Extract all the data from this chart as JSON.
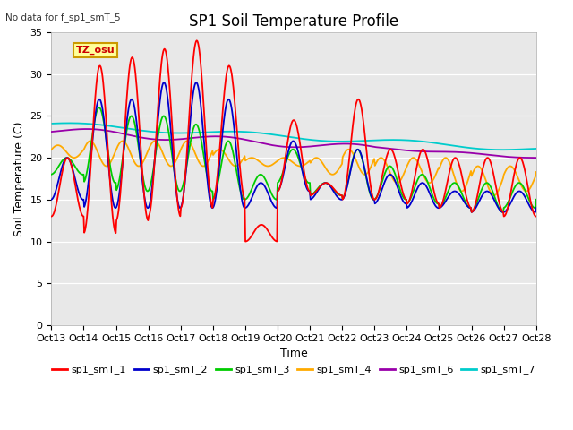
{
  "title": "SP1 Soil Temperature Profile",
  "subtitle": "No data for f_sp1_smT_5",
  "xlabel": "Time",
  "ylabel": "Soil Temperature (C)",
  "ylim": [
    0,
    35
  ],
  "yticks": [
    0,
    5,
    10,
    15,
    20,
    25,
    30,
    35
  ],
  "xtick_labels": [
    "Oct 13",
    "Oct 14",
    "Oct 15",
    "Oct 16",
    "Oct 17",
    "Oct 18",
    "Oct 19",
    "Oct 20",
    "Oct 21",
    "Oct 22",
    "Oct 23",
    "Oct 24",
    "Oct 25",
    "Oct 26",
    "Oct 27",
    "Oct 28"
  ],
  "bg_color": "#ffffff",
  "plot_bg_color": "#e8e8e8",
  "colors": {
    "smT1": "#ff0000",
    "smT2": "#0000cc",
    "smT3": "#00cc00",
    "smT4": "#ffaa00",
    "smT6": "#9900aa",
    "smT7": "#00cccc"
  },
  "tz_label": "TZ_osu",
  "tz_bg": "#ffff99",
  "tz_border": "#cc9900",
  "figsize": [
    6.4,
    4.8
  ],
  "dpi": 100
}
